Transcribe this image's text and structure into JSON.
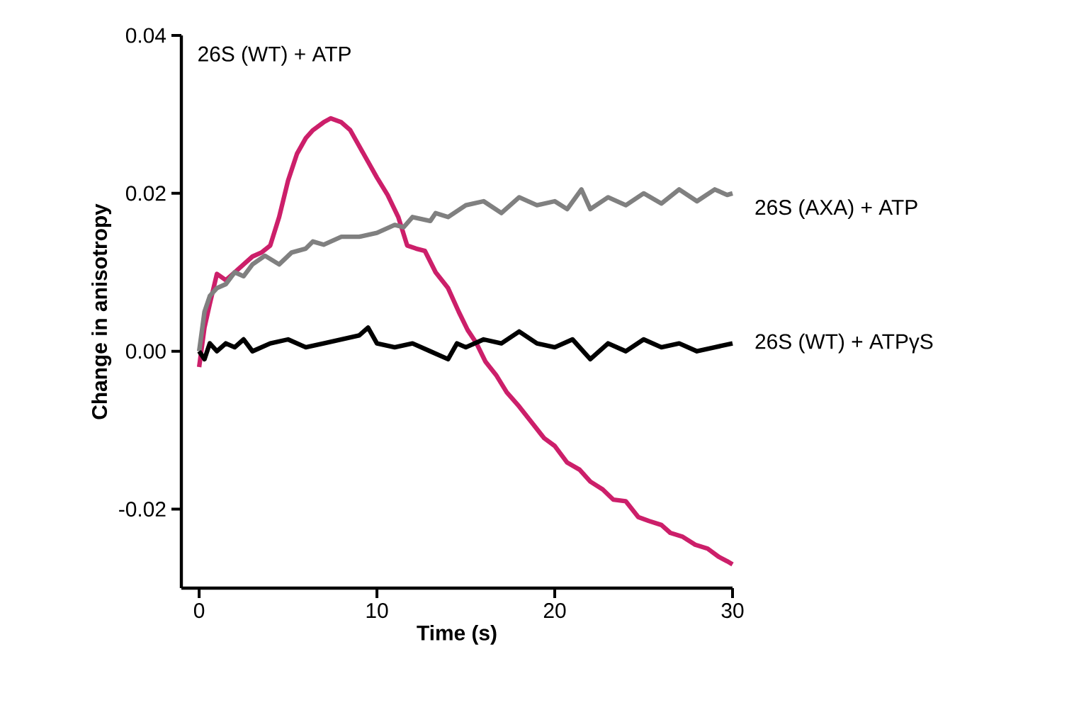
{
  "chart_data": {
    "type": "line",
    "xlabel": "Time (s)",
    "ylabel": "Change in anisotropy",
    "xlim": [
      -1,
      30
    ],
    "ylim": [
      -0.03,
      0.04
    ],
    "xticks": [
      0,
      10,
      20,
      30
    ],
    "yticks": [
      {
        "value": -0.02,
        "label": "-0.02"
      },
      {
        "value": 0,
        "label": "0.00"
      },
      0.02,
      0.04
    ],
    "grid": false,
    "legend": false,
    "series": [
      {
        "name": "26S (WT) + ATP",
        "color": "#cc1f6a",
        "x": [
          0,
          0.3,
          0.6,
          1,
          1.5,
          2,
          2.5,
          3,
          3.5,
          4,
          4.5,
          5,
          5.5,
          6,
          6.4,
          7,
          7.4,
          8,
          8.5,
          9,
          9.5,
          10,
          10.6,
          11.2,
          11.7,
          12.2,
          12.7,
          13.3,
          14,
          14.6,
          15.1,
          15.6,
          16.1,
          16.7,
          17.3,
          18,
          18.7,
          19.4,
          20,
          20.7,
          21.4,
          22,
          22.7,
          23.3,
          24,
          24.7,
          25.3,
          26,
          26.5,
          27.2,
          27.9,
          28.6,
          29.2,
          29.7,
          30
        ],
        "values": [
          -0.002,
          0.003,
          0.006,
          0.0098,
          0.009,
          0.01,
          0.011,
          0.012,
          0.0125,
          0.0134,
          0.017,
          0.0216,
          0.025,
          0.027,
          0.028,
          0.029,
          0.0295,
          0.029,
          0.028,
          0.026,
          0.024,
          0.022,
          0.0198,
          0.017,
          0.0134,
          0.013,
          0.0127,
          0.01,
          0.008,
          0.005,
          0.0027,
          0.001,
          -0.0013,
          -0.003,
          -0.0052,
          -0.007,
          -0.009,
          -0.011,
          -0.012,
          -0.0141,
          -0.015,
          -0.0165,
          -0.0175,
          -0.0188,
          -0.019,
          -0.021,
          -0.0215,
          -0.022,
          -0.023,
          -0.0235,
          -0.0245,
          -0.025,
          -0.026,
          -0.0266,
          -0.027
        ]
      },
      {
        "name": "26S (AXA) + ATP",
        "color": "#808080",
        "x": [
          0,
          0.3,
          0.6,
          1,
          1.5,
          2,
          2.5,
          3,
          3.7,
          4.5,
          5.2,
          6,
          6.4,
          7,
          8,
          9,
          10,
          11,
          11.5,
          12,
          13,
          13.3,
          14,
          15,
          15.4,
          16,
          17,
          18,
          19,
          20,
          20.7,
          21.5,
          22,
          23,
          24,
          25,
          26,
          27,
          28,
          29,
          29.7,
          30
        ],
        "values": [
          0,
          0.005,
          0.007,
          0.008,
          0.0085,
          0.01,
          0.0095,
          0.011,
          0.0121,
          0.011,
          0.0125,
          0.013,
          0.0139,
          0.0135,
          0.0145,
          0.0145,
          0.015,
          0.016,
          0.0157,
          0.017,
          0.0165,
          0.0175,
          0.017,
          0.0185,
          0.0187,
          0.019,
          0.0175,
          0.0195,
          0.0185,
          0.019,
          0.018,
          0.0205,
          0.018,
          0.0195,
          0.0185,
          0.02,
          0.0187,
          0.0205,
          0.019,
          0.0205,
          0.0198,
          0.02
        ]
      },
      {
        "name": "26S (WT) + ATPγS",
        "color": "#000000",
        "x": [
          0,
          0.3,
          0.6,
          1,
          1.5,
          2,
          2.5,
          3,
          4,
          5,
          6,
          7,
          8,
          9,
          9.5,
          10,
          11,
          12,
          13,
          14,
          14.5,
          15,
          16,
          17,
          18,
          19,
          20,
          21,
          22,
          23,
          24,
          25,
          26,
          27,
          28,
          29,
          30
        ],
        "values": [
          0,
          -0.001,
          0.001,
          0,
          0.001,
          0.0005,
          0.0015,
          0,
          0.001,
          0.0015,
          0.0005,
          0.001,
          0.0015,
          0.002,
          0.003,
          0.001,
          0.0005,
          0.001,
          0,
          -0.001,
          0.001,
          0.0005,
          0.0015,
          0.001,
          0.0025,
          0.001,
          0.0005,
          0.0015,
          -0.001,
          0.001,
          0,
          0.0015,
          0.0005,
          0.001,
          0,
          0.0005,
          0.001
        ]
      }
    ]
  }
}
